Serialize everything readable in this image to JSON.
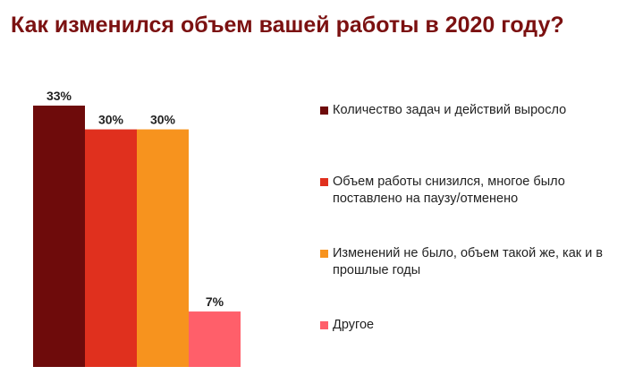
{
  "chart_data": {
    "type": "bar",
    "title": "Как изменился объем вашей работы в 2020 году?",
    "categories": [
      "Количество задач и действий выросло",
      "Объем работы снизился, многое было поставлено на паузу/отменено",
      "Изменений не было, объем такой же, как и в прошлые годы",
      "Другое"
    ],
    "values": [
      33,
      30,
      30,
      7
    ],
    "value_labels": [
      "33%",
      "30%",
      "30%",
      "7%"
    ],
    "colors": [
      "#6e0b0b",
      "#e0301e",
      "#f7931e",
      "#ff5f6a"
    ],
    "ylim": [
      0,
      33
    ],
    "grid": false,
    "legend_position": "right"
  }
}
